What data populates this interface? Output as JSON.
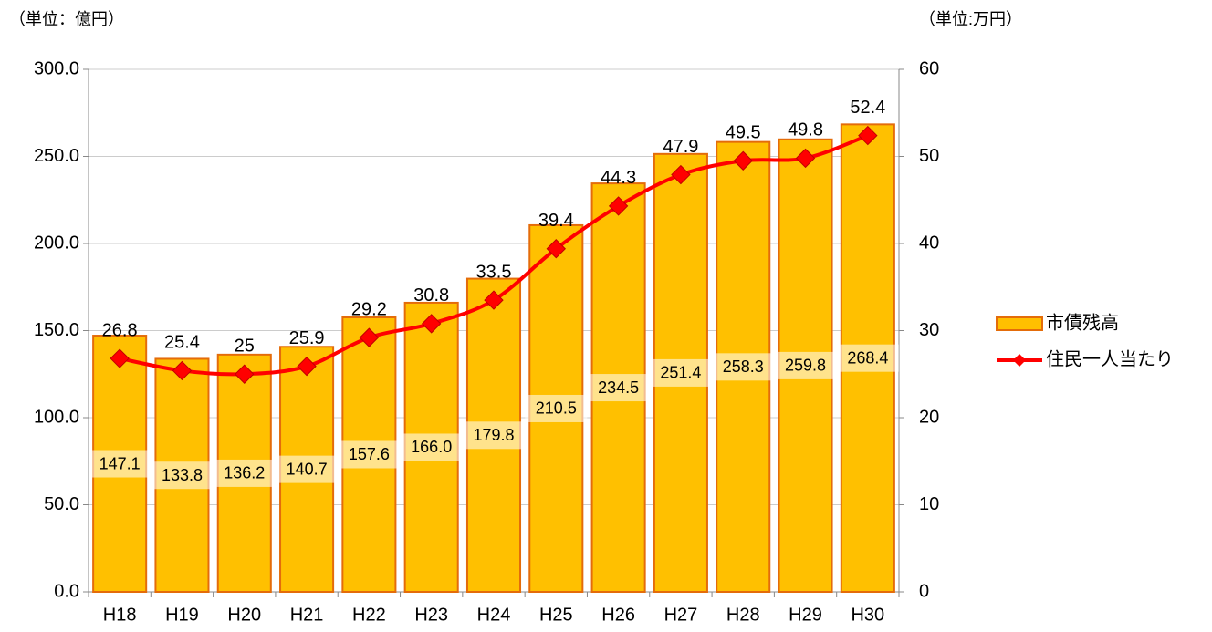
{
  "chart_data": {
    "type": "bar_line",
    "y_label": "（単位：億円）",
    "y2_label": "（単位:万円）",
    "categories": [
      "H18",
      "H19",
      "H20",
      "H21",
      "H22",
      "H23",
      "H24",
      "H25",
      "H26",
      "H27",
      "H28",
      "H29",
      "H30"
    ],
    "series": [
      {
        "name": "市債残高",
        "type": "bar",
        "color": "#FFC000",
        "edge_color": "#E46C0A",
        "values": [
          147.1,
          133.8,
          136.2,
          140.7,
          157.6,
          166.0,
          179.8,
          210.5,
          234.5,
          251.4,
          258.3,
          259.8,
          268.4
        ],
        "value_labels": [
          "147.1",
          "133.8",
          "136.2",
          "140.7",
          "157.6",
          "166.0",
          "179.8",
          "210.5",
          "234.5",
          "251.4",
          "258.3",
          "259.8",
          "268.4"
        ]
      },
      {
        "name": "住民一人当たり",
        "type": "line",
        "axis": "y2",
        "color": "#FF0000",
        "values": [
          26.8,
          25.4,
          25,
          25.9,
          29.2,
          30.8,
          33.5,
          39.4,
          44.3,
          47.9,
          49.5,
          49.8,
          52.4
        ]
      }
    ],
    "ylim": [
      0,
      300
    ],
    "yticks": [
      {
        "value": 0,
        "label": "0.0"
      },
      {
        "value": 50,
        "label": "50.0"
      },
      {
        "value": 100,
        "label": "100.0"
      },
      {
        "value": 150,
        "label": "150.0"
      },
      {
        "value": 200,
        "label": "200.0"
      },
      {
        "value": 250,
        "label": "250.0"
      },
      {
        "value": 300,
        "label": "300.0"
      }
    ],
    "y2lim": [
      0,
      60
    ],
    "y2ticks": [
      0,
      10,
      20,
      30,
      40,
      50,
      60
    ],
    "grid": true,
    "legend": "right"
  }
}
